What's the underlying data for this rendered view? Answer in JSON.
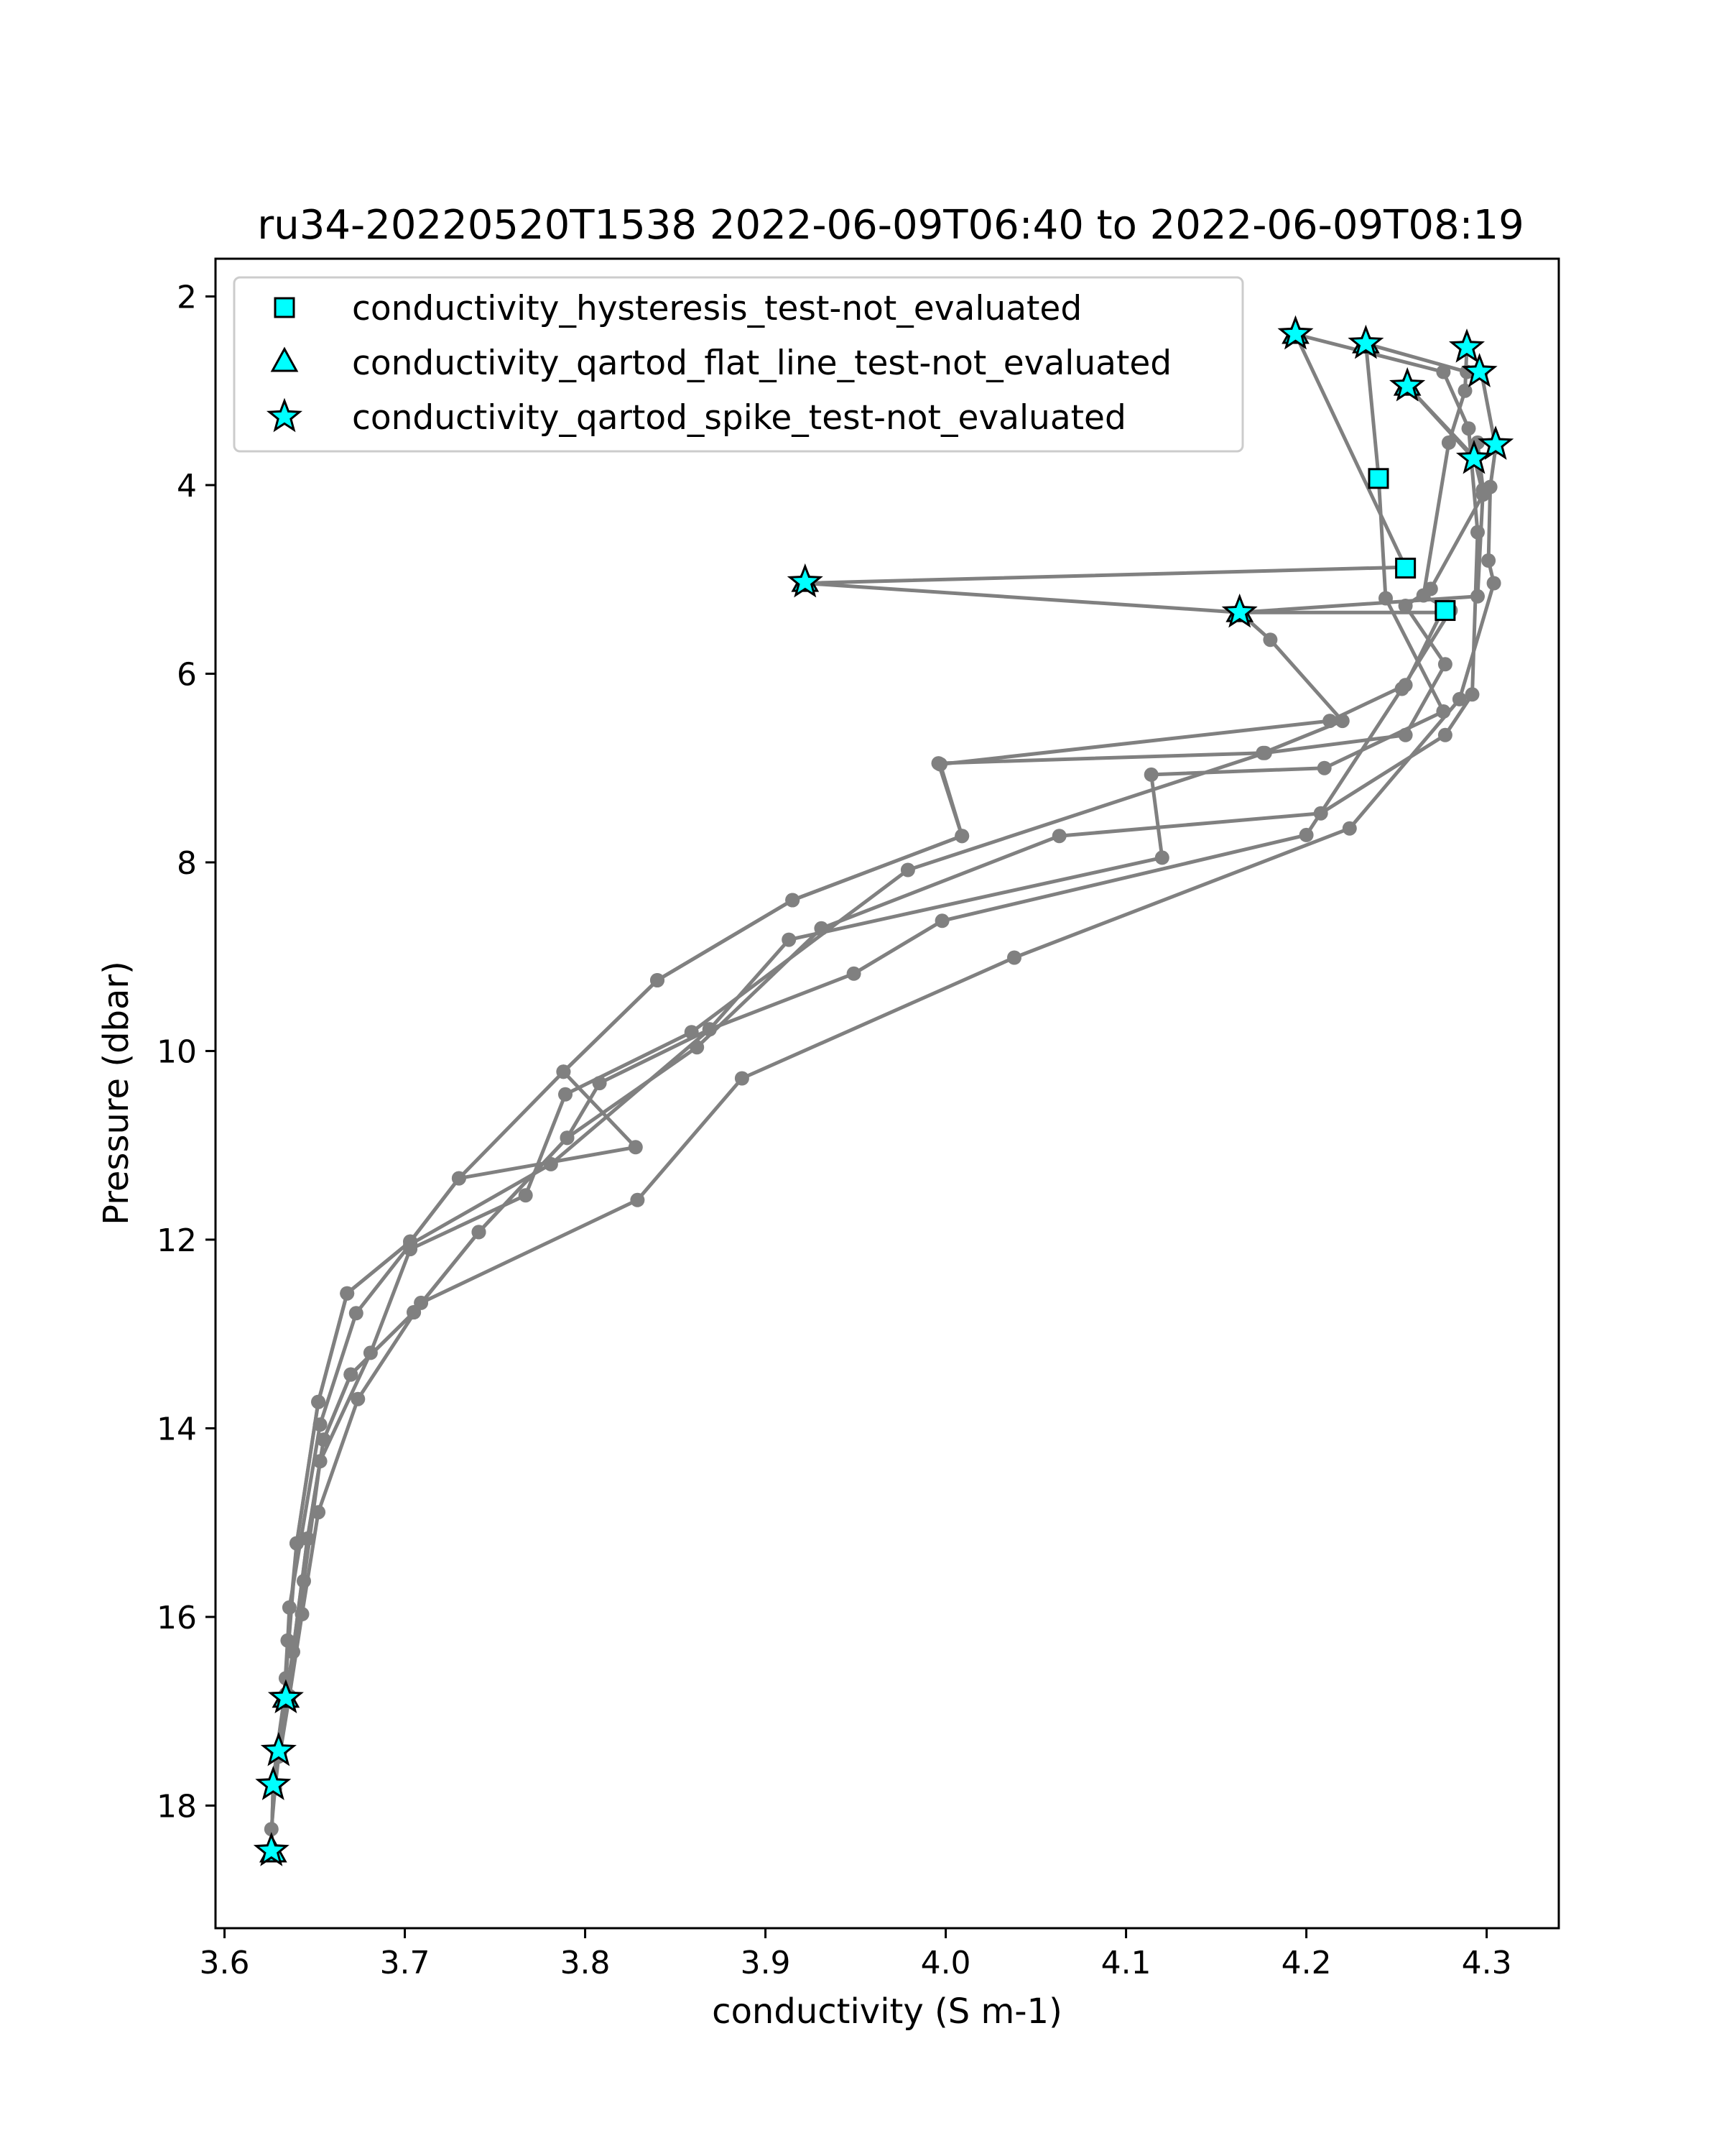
{
  "chart_data": {
    "type": "scatter",
    "title": "ru34-20220520T1538 2022-06-09T06:40 to 2022-06-09T08:19",
    "xlabel": "conductivity (S m-1)",
    "ylabel": "Pressure (dbar)",
    "xlim": [
      3.595,
      4.34
    ],
    "ylim": [
      19.3,
      1.6
    ],
    "y_inverted": true,
    "grid": false,
    "legend_position": "upper-left",
    "x_ticks": [
      {
        "value": 3.6,
        "label": "3.6"
      },
      {
        "value": 3.7,
        "label": "3.7"
      },
      {
        "value": 3.8,
        "label": "3.8"
      },
      {
        "value": 3.9,
        "label": "3.9"
      },
      {
        "value": 4.0,
        "label": "4.0"
      },
      {
        "value": 4.1,
        "label": "4.1"
      },
      {
        "value": 4.2,
        "label": "4.2"
      },
      {
        "value": 4.3,
        "label": "4.3"
      }
    ],
    "y_ticks": [
      {
        "value": 2,
        "label": "2"
      },
      {
        "value": 4,
        "label": "4"
      },
      {
        "value": 6,
        "label": "6"
      },
      {
        "value": 8,
        "label": "8"
      },
      {
        "value": 10,
        "label": "10"
      },
      {
        "value": 12,
        "label": "12"
      },
      {
        "value": 14,
        "label": "14"
      },
      {
        "value": 16,
        "label": "16"
      },
      {
        "value": 18,
        "label": "18"
      }
    ],
    "profile_color": "#808080",
    "flag_color": "#00ffff",
    "profiles": [
      [
        [
          4.194,
          2.4
        ],
        [
          4.255,
          4.87
        ],
        [
          3.922,
          5.04
        ],
        [
          4.163,
          5.35
        ],
        [
          4.275,
          5.35
        ],
        [
          4.255,
          6.12
        ],
        [
          4.213,
          6.5
        ],
        [
          3.997,
          6.96
        ],
        [
          4.009,
          7.72
        ],
        [
          3.915,
          8.4
        ],
        [
          3.84,
          9.25
        ],
        [
          3.788,
          10.22
        ],
        [
          3.73,
          11.35
        ],
        [
          3.703,
          12.02
        ],
        [
          3.668,
          12.57
        ],
        [
          3.652,
          13.72
        ],
        [
          3.64,
          15.22
        ],
        [
          3.635,
          16.25
        ],
        [
          3.633,
          16.88
        ],
        [
          3.629,
          17.42
        ],
        [
          3.627,
          17.78
        ],
        [
          3.626,
          18.48
        ]
      ],
      [
        [
          4.233,
          2.5
        ],
        [
          4.24,
          3.9
        ],
        [
          4.244,
          5.2
        ],
        [
          4.276,
          6.4
        ],
        [
          4.21,
          7.0
        ],
        [
          4.114,
          7.07
        ],
        [
          4.12,
          7.95
        ],
        [
          3.913,
          8.82
        ],
        [
          3.869,
          9.77
        ],
        [
          3.781,
          11.2
        ],
        [
          3.703,
          12.05
        ],
        [
          3.673,
          12.78
        ],
        [
          3.653,
          13.96
        ],
        [
          3.636,
          15.9
        ],
        [
          3.634,
          16.65
        ]
      ],
      [
        [
          4.233,
          2.5
        ],
        [
          4.233,
          2.5
        ],
        [
          4.289,
          2.8
        ],
        [
          4.297,
          2.8
        ],
        [
          4.305,
          3.6
        ],
        [
          4.302,
          4.02
        ],
        [
          4.301,
          4.8
        ],
        [
          4.304,
          5.04
        ],
        [
          4.285,
          6.27
        ],
        [
          4.224,
          7.64
        ],
        [
          4.038,
          9.01
        ],
        [
          3.887,
          10.29
        ],
        [
          3.829,
          11.58
        ],
        [
          3.709,
          12.67
        ],
        [
          3.674,
          13.69
        ],
        [
          3.652,
          14.89
        ],
        [
          3.643,
          15.97
        ],
        [
          3.636,
          16.84
        ]
      ],
      [
        [
          4.194,
          2.4
        ],
        [
          4.276,
          2.8
        ],
        [
          4.29,
          3.4
        ],
        [
          4.295,
          4.5
        ],
        [
          4.292,
          6.22
        ],
        [
          4.277,
          6.65
        ],
        [
          4.208,
          7.48
        ],
        [
          4.063,
          7.72
        ],
        [
          3.931,
          8.7
        ],
        [
          3.862,
          9.96
        ],
        [
          3.79,
          10.92
        ],
        [
          3.741,
          11.92
        ],
        [
          3.705,
          12.77
        ],
        [
          3.67,
          13.43
        ],
        [
          3.655,
          14.12
        ],
        [
          3.646,
          15.17
        ],
        [
          3.638,
          16.37
        ],
        [
          3.63,
          17.48
        ],
        [
          3.628,
          17.82
        ],
        [
          3.626,
          18.25
        ]
      ],
      [
        [
          4.256,
          2.95
        ],
        [
          4.293,
          3.7
        ],
        [
          4.298,
          4.1
        ],
        [
          4.269,
          5.1
        ],
        [
          4.255,
          5.28
        ],
        [
          4.277,
          5.9
        ],
        [
          4.255,
          6.65
        ],
        [
          4.177,
          6.84
        ],
        [
          3.979,
          8.08
        ],
        [
          3.859,
          9.8
        ],
        [
          3.789,
          10.46
        ],
        [
          3.767,
          11.53
        ],
        [
          3.703,
          12.1
        ],
        [
          3.681,
          13.2
        ],
        [
          3.653,
          14.35
        ],
        [
          3.644,
          15.62
        ],
        [
          3.636,
          16.84
        ],
        [
          3.631,
          17.42
        ],
        [
          3.627,
          17.78
        ],
        [
          3.626,
          18.48
        ]
      ],
      [
        [
          4.289,
          2.54
        ],
        [
          4.288,
          3.0
        ],
        [
          4.279,
          3.55
        ],
        [
          4.265,
          5.17
        ],
        [
          4.28,
          5.33
        ],
        [
          4.253,
          6.16
        ],
        [
          4.2,
          7.71
        ],
        [
          3.998,
          8.62
        ],
        [
          3.949,
          9.18
        ],
        [
          3.869,
          9.77
        ],
        [
          3.808,
          10.34
        ],
        [
          3.79,
          10.92
        ],
        [
          3.741,
          11.92
        ],
        [
          3.705,
          12.77
        ],
        [
          3.67,
          13.43
        ],
        [
          3.655,
          14.12
        ],
        [
          3.646,
          15.17
        ],
        [
          3.638,
          16.37
        ],
        [
          3.634,
          16.82
        ]
      ],
      [
        [
          4.256,
          2.95
        ],
        [
          4.292,
          3.7
        ],
        [
          4.295,
          3.55
        ],
        [
          4.298,
          4.05
        ],
        [
          4.295,
          5.18
        ],
        [
          4.163,
          5.35
        ],
        [
          4.18,
          5.64
        ],
        [
          4.22,
          6.5
        ],
        [
          4.176,
          6.84
        ],
        [
          3.996,
          6.95
        ],
        [
          4.009,
          7.72
        ],
        [
          3.915,
          8.4
        ],
        [
          3.84,
          9.25
        ],
        [
          3.788,
          10.22
        ],
        [
          3.828,
          11.02
        ],
        [
          3.73,
          11.35
        ],
        [
          3.703,
          12.02
        ],
        [
          3.668,
          12.57
        ],
        [
          3.652,
          13.72
        ],
        [
          3.64,
          15.22
        ],
        [
          3.633,
          16.88
        ]
      ]
    ],
    "series": [
      {
        "name": "conductivity_hysteresis_test-not_evaluated",
        "marker": "square",
        "points": [
          [
            4.24,
            3.93
          ],
          [
            4.255,
            4.88
          ],
          [
            4.277,
            5.33
          ]
        ]
      },
      {
        "name": "conductivity_qartod_flat_line_test-not_evaluated",
        "marker": "triangle",
        "points": [
          [
            4.194,
            2.4
          ],
          [
            4.233,
            2.5
          ],
          [
            4.256,
            2.95
          ],
          [
            3.922,
            5.03
          ],
          [
            4.163,
            5.35
          ],
          [
            3.634,
            16.86
          ],
          [
            3.627,
            18.5
          ]
        ]
      },
      {
        "name": "conductivity_qartod_spike_test-not_evaluated",
        "marker": "star",
        "points": [
          [
            4.194,
            2.4
          ],
          [
            4.233,
            2.5
          ],
          [
            4.289,
            2.54
          ],
          [
            4.296,
            2.8
          ],
          [
            4.256,
            2.95
          ],
          [
            4.305,
            3.57
          ],
          [
            4.293,
            3.72
          ],
          [
            3.922,
            5.03
          ],
          [
            4.163,
            5.35
          ],
          [
            3.634,
            16.86
          ],
          [
            3.63,
            17.42
          ],
          [
            3.627,
            17.78
          ],
          [
            3.626,
            18.48
          ]
        ]
      }
    ]
  }
}
